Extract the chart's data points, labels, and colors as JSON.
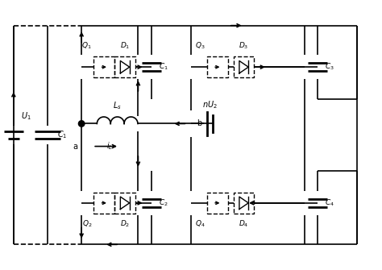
{
  "bg_color": "#ffffff",
  "fig_width": 4.74,
  "fig_height": 3.35,
  "dpi": 100,
  "lw": 1.2,
  "lw_thick": 2.0
}
